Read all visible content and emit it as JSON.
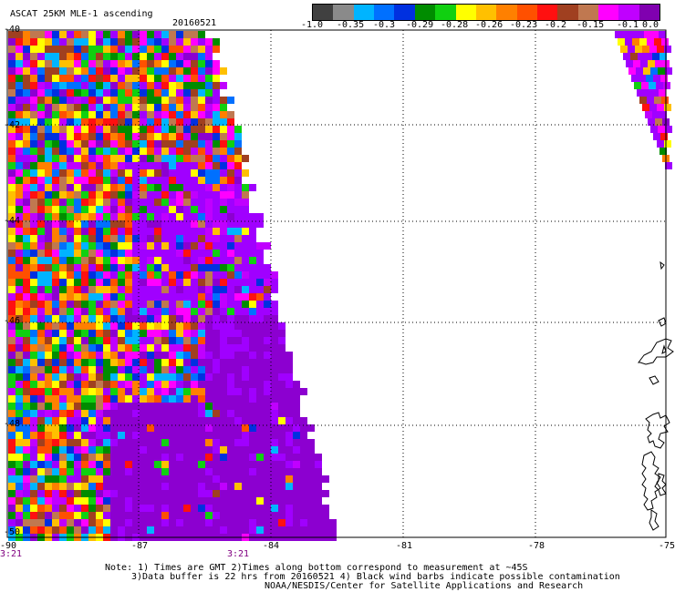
{
  "header": {
    "title": "ASCAT 25KM MLE-1 ascending",
    "date": "20160521"
  },
  "colorbar": {
    "colors": [
      "#404040",
      "#8a8a8a",
      "#00b4ff",
      "#0070ff",
      "#0030e0",
      "#008c00",
      "#10d010",
      "#ffff00",
      "#ffc000",
      "#ff8000",
      "#ff5000",
      "#ff1010",
      "#a04020",
      "#c07850",
      "#ff00ff",
      "#c000ff",
      "#8000b0"
    ],
    "labels": [
      "-1.0",
      "-0.35",
      "-0.3",
      "-0.29",
      "-0.28",
      "-0.26",
      "-0.23",
      "-0.2",
      "-0.15",
      "-0.1",
      "0.0"
    ]
  },
  "axes": {
    "lat_labels": [
      "-40",
      "-42",
      "-44",
      "-46",
      "-48",
      "-50"
    ],
    "lon_labels": [
      "-90",
      "-87",
      "-84",
      "-81",
      "-78",
      "-75"
    ]
  },
  "times": {
    "left": "3:21",
    "mid": "3:21"
  },
  "notes": {
    "line1": "Note: 1) Times are GMT 2)Times along bottom correspond to measurement at ~45S",
    "line2": "3)Data buffer is 22 hrs from 20160521 4) Black wind barbs indicate possible contamination",
    "line3": "NOAA/NESDIS/Center for Satellite Applications and Research"
  }
}
